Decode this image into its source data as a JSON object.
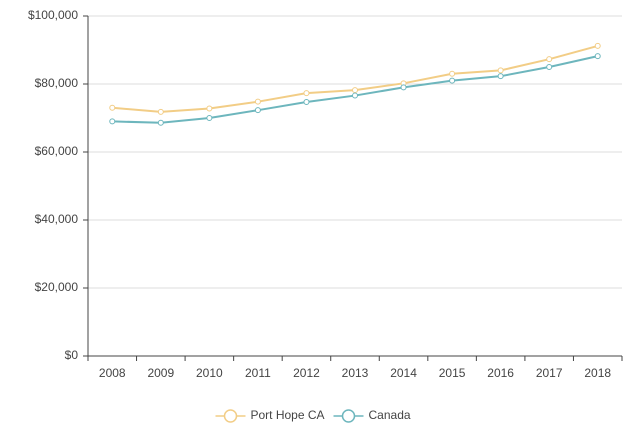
{
  "chart_data": {
    "type": "line",
    "categories": [
      "2008",
      "2009",
      "2010",
      "2011",
      "2012",
      "2013",
      "2014",
      "2015",
      "2016",
      "2017",
      "2018"
    ],
    "series": [
      {
        "name": "Port Hope CA",
        "color": "#f2cd86",
        "values": [
          73000,
          71800,
          72800,
          74800,
          77300,
          78200,
          80200,
          83000,
          84000,
          87300,
          91200
        ]
      },
      {
        "name": "Canada",
        "color": "#6db6bd",
        "values": [
          69000,
          68600,
          70000,
          72300,
          74700,
          76600,
          79000,
          81000,
          82300,
          85000,
          88200
        ]
      }
    ],
    "ylim": [
      0,
      100000
    ],
    "yticks": [
      {
        "value": 0,
        "label": "$0"
      },
      {
        "value": 20000,
        "label": "$20,000"
      },
      {
        "value": 40000,
        "label": "$40,000"
      },
      {
        "value": 60000,
        "label": "$60,000"
      },
      {
        "value": 80000,
        "label": "$80,000"
      },
      {
        "value": 100000,
        "label": "$100,000"
      }
    ],
    "grid": true
  }
}
